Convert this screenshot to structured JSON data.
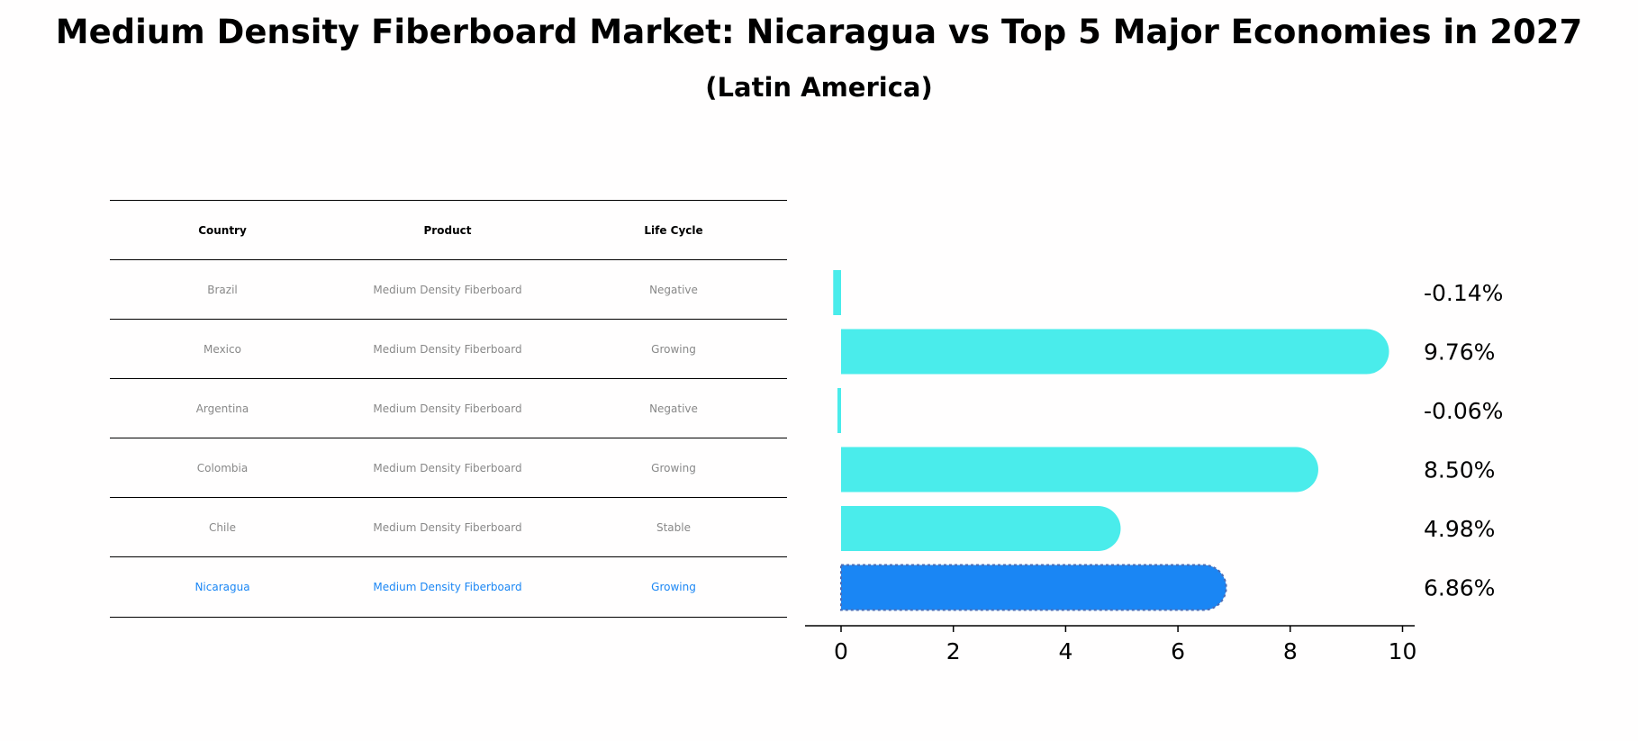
{
  "title": "Medium Density Fiberboard Market: Nicaragua vs Top 5 Major Economies in 2027",
  "subtitle": "(Latin America)",
  "table": {
    "headers": [
      "Country",
      "Product",
      "Life Cycle"
    ],
    "rows": [
      [
        "Brazil",
        "Medium Density Fiberboard",
        "Negative"
      ],
      [
        "Mexico",
        "Medium Density Fiberboard",
        "Growing"
      ],
      [
        "Argentina",
        "Medium Density Fiberboard",
        "Negative"
      ],
      [
        "Colombia",
        "Medium Density Fiberboard",
        "Growing"
      ],
      [
        "Chile",
        "Medium Density Fiberboard",
        "Stable"
      ],
      [
        "Nicaragua",
        "Medium Density Fiberboard",
        "Growing"
      ]
    ],
    "highlight_row": "Nicaragua"
  },
  "chart_data": {
    "type": "bar",
    "orientation": "horizontal",
    "categories": [
      "Brazil",
      "Mexico",
      "Argentina",
      "Colombia",
      "Chile",
      "Nicaragua"
    ],
    "values": [
      -0.14,
      9.76,
      -0.06,
      8.5,
      4.98,
      6.86
    ],
    "labels": [
      "-0.14%",
      "9.76%",
      "-0.06%",
      "8.50%",
      "4.98%",
      "6.86%"
    ],
    "highlight": "Nicaragua",
    "xticks": [
      0,
      2,
      4,
      6,
      8,
      10
    ],
    "xlim": [
      -0.65,
      10.25
    ],
    "colors": {
      "bar": "#4aeceb",
      "highlight": "#1a86f4",
      "highlight_edge": "#4c6db5"
    }
  }
}
